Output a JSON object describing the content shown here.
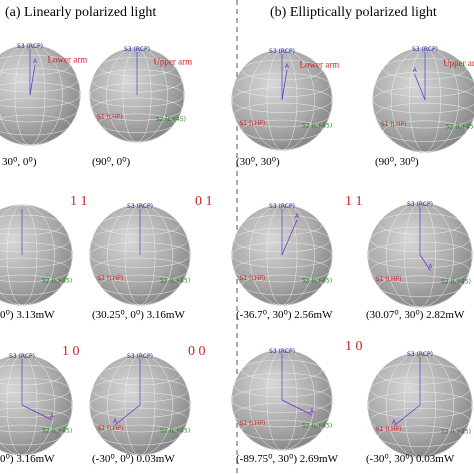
{
  "headings": {
    "a": "(a) Linearly polarized light",
    "b": "(b) Elliptically polarized light"
  },
  "panels": {
    "a": [
      {
        "caption": "30⁰, 0⁰)",
        "s3": "S3 (RCP)",
        "arm": "Lower arm",
        "point": "A"
      },
      {
        "caption": "(90⁰, 0⁰)",
        "s3": "S3 (RCP)",
        "arm": "Upper arm",
        "s1": "S1 (LHP)",
        "s2": "S2 (L+45)"
      },
      {
        "caption": "0⁰)  3.13mW",
        "state": "1 1",
        "s2": "S2 (L+45)"
      },
      {
        "caption": "(30.25⁰, 0⁰)  3.16mW",
        "state": "0 1",
        "s3": "S3 (RCP)",
        "s1": "S1 (LHP)",
        "s2": "S2 (L+45)"
      },
      {
        "caption": "0⁰)  3.16mW",
        "state": "1 0",
        "s3": "S3 (RCP)",
        "s2": "S2 (L+45)",
        "point": "A"
      },
      {
        "caption": "(-30⁰, 0⁰)  0.03mW",
        "state": "0 0",
        "s3": "S3 (RCP)",
        "s1": "S1 (LHP)",
        "s2": "S2 (L+45)",
        "point": "A"
      }
    ],
    "b": [
      {
        "caption": "(30⁰, 30⁰)",
        "s3": "S3 (RCP)",
        "arm": "Lower arm",
        "s1": "S1 (LHP)",
        "s2": "S2 (L+45)",
        "point": "A"
      },
      {
        "caption": "(90⁰, 30⁰)",
        "s3": "S3 (RCP)",
        "arm": "Upper arm",
        "s1": "S1 (LHP)",
        "s2": "S2 (L+45)",
        "point": "A"
      },
      {
        "caption": "(-36.7⁰, 30⁰)  2.56mW",
        "state": "1 1",
        "s3": "S3 (RCP)",
        "s1": "S1 (LHP)",
        "s2": "S2 (L+45)",
        "point": "A"
      },
      {
        "caption": "(30.07⁰, 30⁰)  2.82mW",
        "s3": "S3 (RCP)",
        "s1": "S1 (LHP)",
        "s2": "S2 (L+45)",
        "point": "A"
      },
      {
        "caption": "(-89.75⁰, 30⁰)  2.69mW",
        "state": "1 0",
        "s3": "S3 (RCP)",
        "s1": "S1 (LHP)",
        "s2": "S2 (L+45)",
        "point": "A"
      },
      {
        "caption": "(-30⁰, 30⁰)  0.03mW",
        "s3": "S3 (RCP)",
        "s1": "S1 (LHP)",
        "s2": "S2 (L+45)",
        "point": "A"
      }
    ]
  }
}
